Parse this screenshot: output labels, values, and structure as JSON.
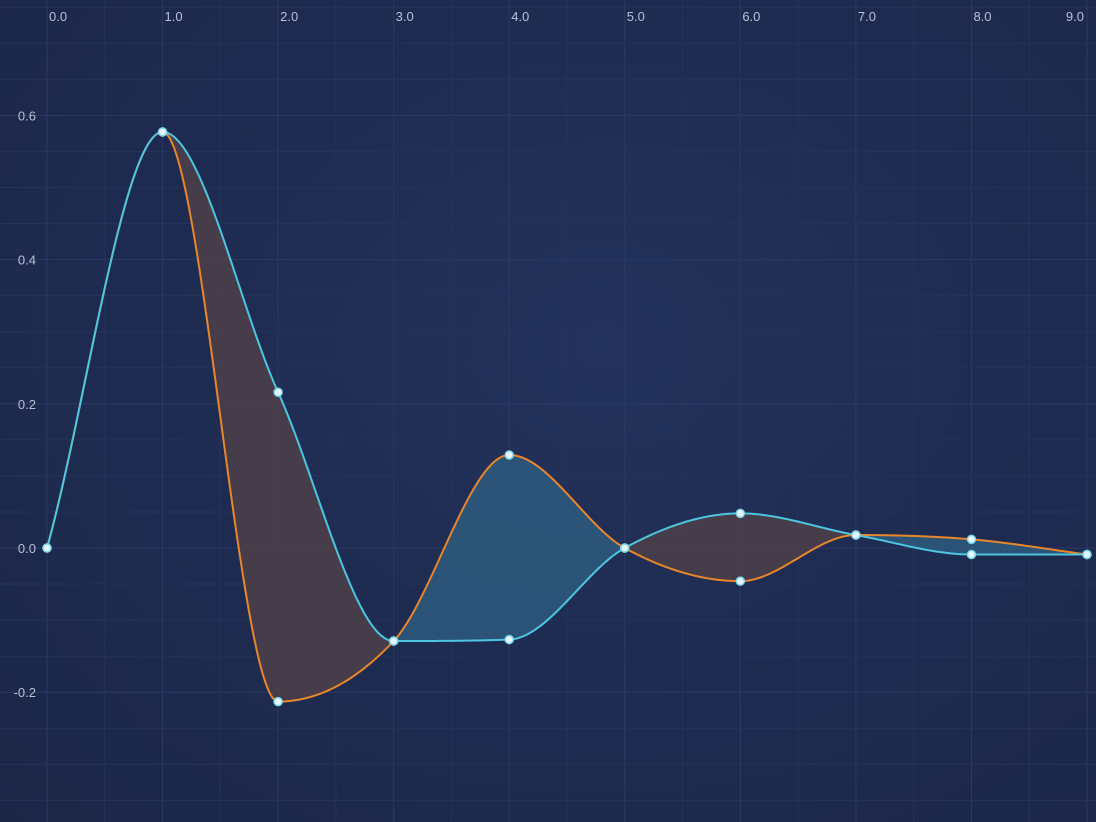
{
  "chart_data": {
    "type": "line",
    "title": "",
    "xlabel": "",
    "ylabel": "",
    "x": [
      0,
      1,
      2,
      3,
      4,
      5,
      6,
      7,
      8,
      9
    ],
    "series": [
      {
        "color": "#e8862a",
        "values": [
          0,
          0.577,
          -0.213,
          -0.129,
          0.129,
          0.0,
          -0.046,
          0.018,
          0.012,
          -0.009
        ]
      },
      {
        "color": "#4cc6e0",
        "values": [
          0,
          0.577,
          0.216,
          -0.129,
          -0.127,
          0.0,
          0.048,
          0.018,
          -0.009,
          -0.009
        ]
      }
    ],
    "fill_colors": {
      "blue_on_top": "#2e5b7e",
      "orange_on_top": "#4d3f49"
    },
    "xlim": [
      0,
      9
    ],
    "ylim": [
      -0.38,
      0.76
    ],
    "x_ticks": [
      "0.0",
      "1.0",
      "2.0",
      "3.0",
      "4.0",
      "5.0",
      "6.0",
      "7.0",
      "8.0",
      "9.0"
    ],
    "y_ticks": [
      "0.6",
      "0.4",
      "0.2",
      "0.0",
      "-0.2"
    ],
    "x_axis_position": "top",
    "grid": true,
    "legend": "none"
  }
}
